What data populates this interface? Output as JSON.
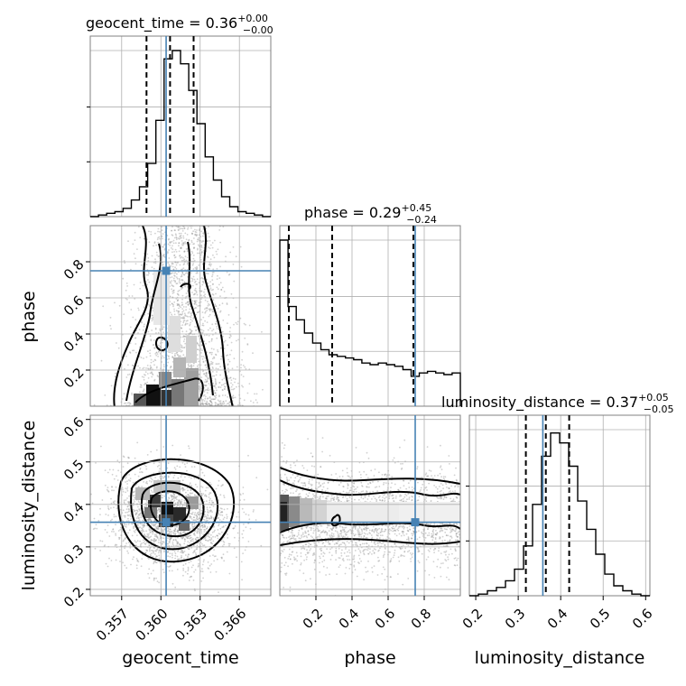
{
  "chart_data": {
    "type": "corner",
    "parameters": [
      "geocent_time",
      "phase",
      "luminosity_distance"
    ],
    "truths": {
      "geocent_time": 0.3604,
      "phase": 0.75,
      "luminosity_distance": 0.358
    },
    "axis_ranges": {
      "geocent_time": [
        0.3546,
        0.3684
      ],
      "phase": [
        0.0,
        1.0
      ],
      "luminosity_distance": [
        0.185,
        0.61
      ]
    },
    "ticks": {
      "geocent_time": [
        "0.357",
        "0.360",
        "0.363",
        "0.366"
      ],
      "phase": [
        "0.2",
        "0.4",
        "0.6",
        "0.8"
      ],
      "luminosity_distance": [
        "0.2",
        "0.3",
        "0.4",
        "0.5",
        "0.6"
      ]
    },
    "titles": {
      "geocent_time": {
        "prefix": "geocent_time = 0.36",
        "plus": "+0.00",
        "minus": "−0.00"
      },
      "phase": {
        "prefix": "phase = 0.29",
        "plus": "+0.45",
        "minus": "−0.24"
      },
      "luminosity_distance": {
        "prefix": "luminosity_distance = 0.37",
        "plus": "+0.05",
        "minus": "−0.05"
      }
    },
    "quantiles": {
      "geocent_time": [
        0.3589,
        0.3607,
        0.3625
      ],
      "phase": [
        0.05,
        0.29,
        0.74
      ],
      "luminosity_distance": [
        0.318,
        0.365,
        0.42
      ]
    },
    "histograms": {
      "geocent_time": {
        "edges_range": [
          0.3546,
          0.3684
        ],
        "counts": [
          0.0,
          0.01,
          0.02,
          0.03,
          0.05,
          0.1,
          0.18,
          0.32,
          0.58,
          0.95,
          1.0,
          0.92,
          0.76,
          0.56,
          0.36,
          0.22,
          0.12,
          0.06,
          0.03,
          0.02,
          0.01,
          0.0
        ]
      },
      "phase": {
        "edges_range": [
          0.0,
          1.0
        ],
        "counts": [
          1.0,
          0.6,
          0.52,
          0.44,
          0.38,
          0.34,
          0.31,
          0.3,
          0.29,
          0.28,
          0.26,
          0.25,
          0.26,
          0.25,
          0.24,
          0.22,
          0.18,
          0.2,
          0.21,
          0.2,
          0.19,
          0.2
        ]
      },
      "luminosity_distance": {
        "edges_range": [
          0.185,
          0.61
        ],
        "counts": [
          0.0,
          0.01,
          0.03,
          0.05,
          0.09,
          0.16,
          0.3,
          0.55,
          0.84,
          0.98,
          0.92,
          0.78,
          0.57,
          0.4,
          0.25,
          0.13,
          0.06,
          0.03,
          0.01,
          0.0
        ]
      }
    },
    "grid": true
  }
}
